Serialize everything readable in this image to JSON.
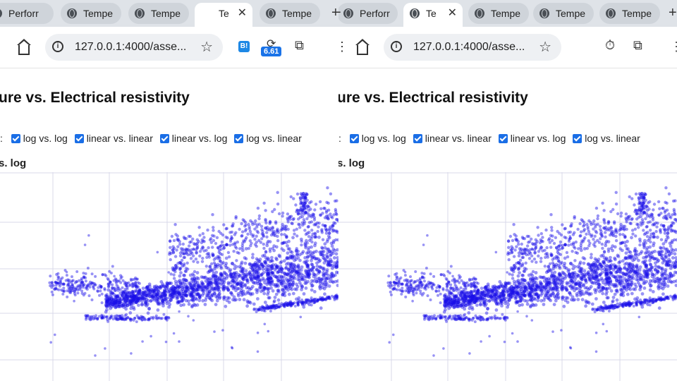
{
  "tabs_left": [
    {
      "label": "Perforr",
      "active": false
    },
    {
      "label": "Tempe",
      "active": false
    },
    {
      "label": "Tempe",
      "active": false
    },
    {
      "label": "Te",
      "active": true
    },
    {
      "label": "Tempe",
      "active": false
    }
  ],
  "tabs_right": [
    {
      "label": "Perforr",
      "active": false
    },
    {
      "label": "Te",
      "active": true
    },
    {
      "label": "Tempe",
      "active": false
    },
    {
      "label": "Tempe",
      "active": false
    },
    {
      "label": "Tempe",
      "active": false
    }
  ],
  "address": {
    "url": "127.0.0.1:4000/asse..."
  },
  "extension": {
    "b_label": "B!",
    "badge": "6.61"
  },
  "page": {
    "title_visible": "ure vs. Electrical resistivity",
    "colon": ":",
    "checkbox_labels": [
      "log vs. log",
      "linear vs. linear",
      "linear vs. log",
      "log vs. linear"
    ],
    "plot_subtitle": "s. log"
  },
  "chart_data": {
    "type": "scatter",
    "title": "",
    "xlabel": "",
    "ylabel": "",
    "series": [
      {
        "name": "",
        "color": "#1a0fe8",
        "opacity": 0.45
      }
    ],
    "grid": true
  },
  "colors": {
    "marker": "#1a0fe8",
    "checkbox": "#1a6ee6",
    "grid": "#d9d9ea"
  }
}
